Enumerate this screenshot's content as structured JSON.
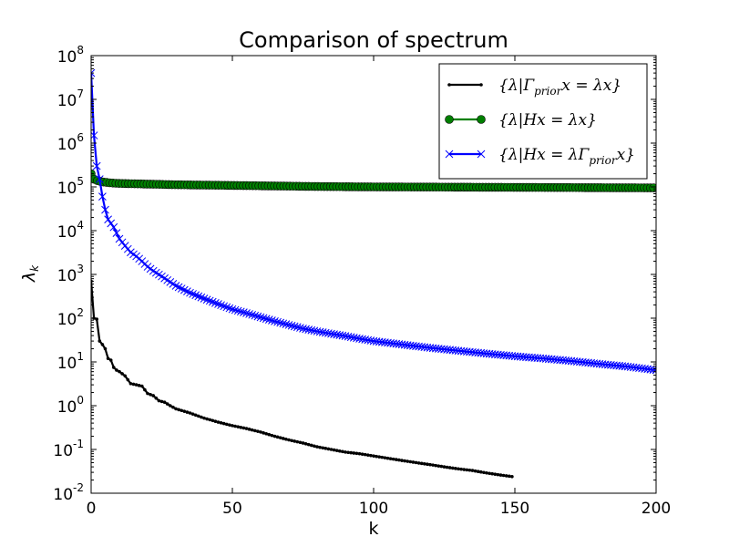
{
  "chart_data": {
    "type": "line",
    "title": "Comparison of spectrum",
    "xlabel": "k",
    "ylabel": "λ_k",
    "xlim": [
      0,
      200
    ],
    "ylim": [
      0.01,
      100000000
    ],
    "yscale": "log",
    "xticks": [
      "0",
      "50",
      "100",
      "150",
      "200"
    ],
    "yticks": [
      {
        "base": "10",
        "exp": "-2"
      },
      {
        "base": "10",
        "exp": "-1"
      },
      {
        "base": "10",
        "exp": "0"
      },
      {
        "base": "10",
        "exp": "1"
      },
      {
        "base": "10",
        "exp": "2"
      },
      {
        "base": "10",
        "exp": "3"
      },
      {
        "base": "10",
        "exp": "4"
      },
      {
        "base": "10",
        "exp": "5"
      },
      {
        "base": "10",
        "exp": "6"
      },
      {
        "base": "10",
        "exp": "7"
      },
      {
        "base": "10",
        "exp": "8"
      }
    ],
    "legend_position": "top-right",
    "grid": false,
    "series": [
      {
        "name": "{λ|Γ_prior x = λx}",
        "color": "#000000",
        "marker": "dot",
        "points": [
          [
            0,
            700
          ],
          [
            1,
            100
          ],
          [
            2,
            95
          ],
          [
            3,
            30
          ],
          [
            4,
            25
          ],
          [
            5,
            20
          ],
          [
            6,
            12
          ],
          [
            7,
            11
          ],
          [
            8,
            7.5
          ],
          [
            9,
            6.5
          ],
          [
            10,
            6
          ],
          [
            12,
            4.8
          ],
          [
            14,
            3.2
          ],
          [
            16,
            3.0
          ],
          [
            18,
            2.8
          ],
          [
            20,
            1.9
          ],
          [
            22,
            1.7
          ],
          [
            24,
            1.3
          ],
          [
            26,
            1.2
          ],
          [
            28,
            1.0
          ],
          [
            30,
            0.85
          ],
          [
            35,
            0.68
          ],
          [
            40,
            0.52
          ],
          [
            45,
            0.42
          ],
          [
            50,
            0.35
          ],
          [
            55,
            0.3
          ],
          [
            60,
            0.25
          ],
          [
            65,
            0.2
          ],
          [
            70,
            0.165
          ],
          [
            75,
            0.14
          ],
          [
            80,
            0.115
          ],
          [
            85,
            0.1
          ],
          [
            90,
            0.087
          ],
          [
            95,
            0.08
          ],
          [
            100,
            0.071
          ],
          [
            105,
            0.063
          ],
          [
            110,
            0.056
          ],
          [
            115,
            0.05
          ],
          [
            120,
            0.045
          ],
          [
            125,
            0.04
          ],
          [
            130,
            0.036
          ],
          [
            135,
            0.033
          ],
          [
            140,
            0.029
          ],
          [
            145,
            0.026
          ],
          [
            149,
            0.024
          ]
        ]
      },
      {
        "name": "{λ|Hx = λx}",
        "color": "#007f00",
        "marker": "circle",
        "points": [
          [
            0,
            200000
          ],
          [
            1,
            150000
          ],
          [
            2,
            140000
          ],
          [
            3,
            135000
          ],
          [
            4,
            130000
          ],
          [
            5,
            128000
          ],
          [
            6,
            125000
          ],
          [
            8,
            122000
          ],
          [
            10,
            120000
          ],
          [
            15,
            118000
          ],
          [
            20,
            116000
          ],
          [
            25,
            114000
          ],
          [
            30,
            112000
          ],
          [
            40,
            110000
          ],
          [
            50,
            108000
          ],
          [
            60,
            106000
          ],
          [
            70,
            104000
          ],
          [
            80,
            102000
          ],
          [
            90,
            101000
          ],
          [
            100,
            100000
          ],
          [
            110,
            99500
          ],
          [
            120,
            99000
          ],
          [
            130,
            98500
          ],
          [
            140,
            98000
          ],
          [
            150,
            97500
          ],
          [
            160,
            97000
          ],
          [
            170,
            96500
          ],
          [
            180,
            96000
          ],
          [
            190,
            95500
          ],
          [
            200,
            95000
          ]
        ]
      },
      {
        "name": "{λ|Hx = λΓ_prior x}",
        "color": "#0000ff",
        "marker": "x",
        "points": [
          [
            0,
            40000000
          ],
          [
            1,
            1500000
          ],
          [
            2,
            300000
          ],
          [
            3,
            150000
          ],
          [
            4,
            60000
          ],
          [
            5,
            30000
          ],
          [
            6,
            18000
          ],
          [
            8,
            12000
          ],
          [
            10,
            6500
          ],
          [
            12,
            4500
          ],
          [
            14,
            3200
          ],
          [
            16,
            2600
          ],
          [
            18,
            2000
          ],
          [
            20,
            1500
          ],
          [
            22,
            1200
          ],
          [
            25,
            900
          ],
          [
            30,
            550
          ],
          [
            35,
            380
          ],
          [
            40,
            280
          ],
          [
            45,
            210
          ],
          [
            50,
            160
          ],
          [
            55,
            130
          ],
          [
            60,
            105
          ],
          [
            65,
            85
          ],
          [
            70,
            70
          ],
          [
            75,
            58
          ],
          [
            80,
            50
          ],
          [
            85,
            44
          ],
          [
            90,
            39
          ],
          [
            95,
            34
          ],
          [
            100,
            30
          ],
          [
            110,
            25
          ],
          [
            120,
            21
          ],
          [
            130,
            18
          ],
          [
            140,
            15.5
          ],
          [
            150,
            13.5
          ],
          [
            160,
            12
          ],
          [
            170,
            10.5
          ],
          [
            180,
            9
          ],
          [
            190,
            7.8
          ],
          [
            200,
            6.5
          ]
        ]
      }
    ]
  }
}
